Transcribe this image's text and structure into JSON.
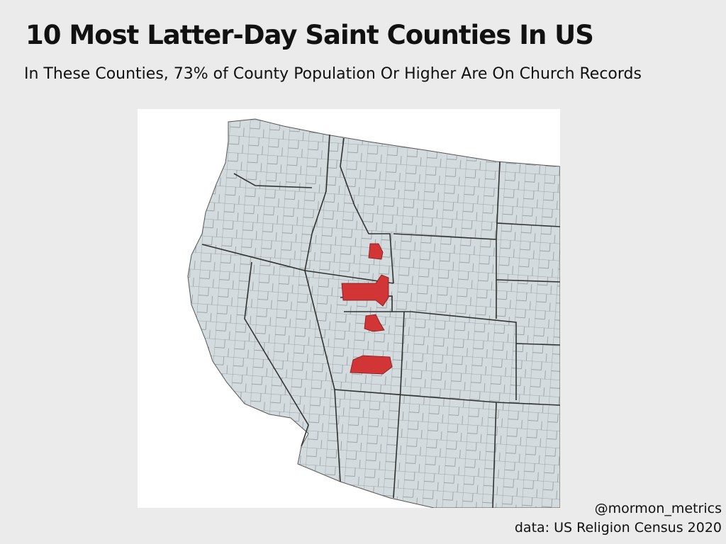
{
  "header": {
    "title": "10 Most Latter-Day Saint Counties In US",
    "subtitle": "In These Counties, 73% of County Population Or Higher Are On Church Records"
  },
  "footer": {
    "credit": "@mormon_metrics",
    "source": "data: US Religion Census 2020"
  }
}
